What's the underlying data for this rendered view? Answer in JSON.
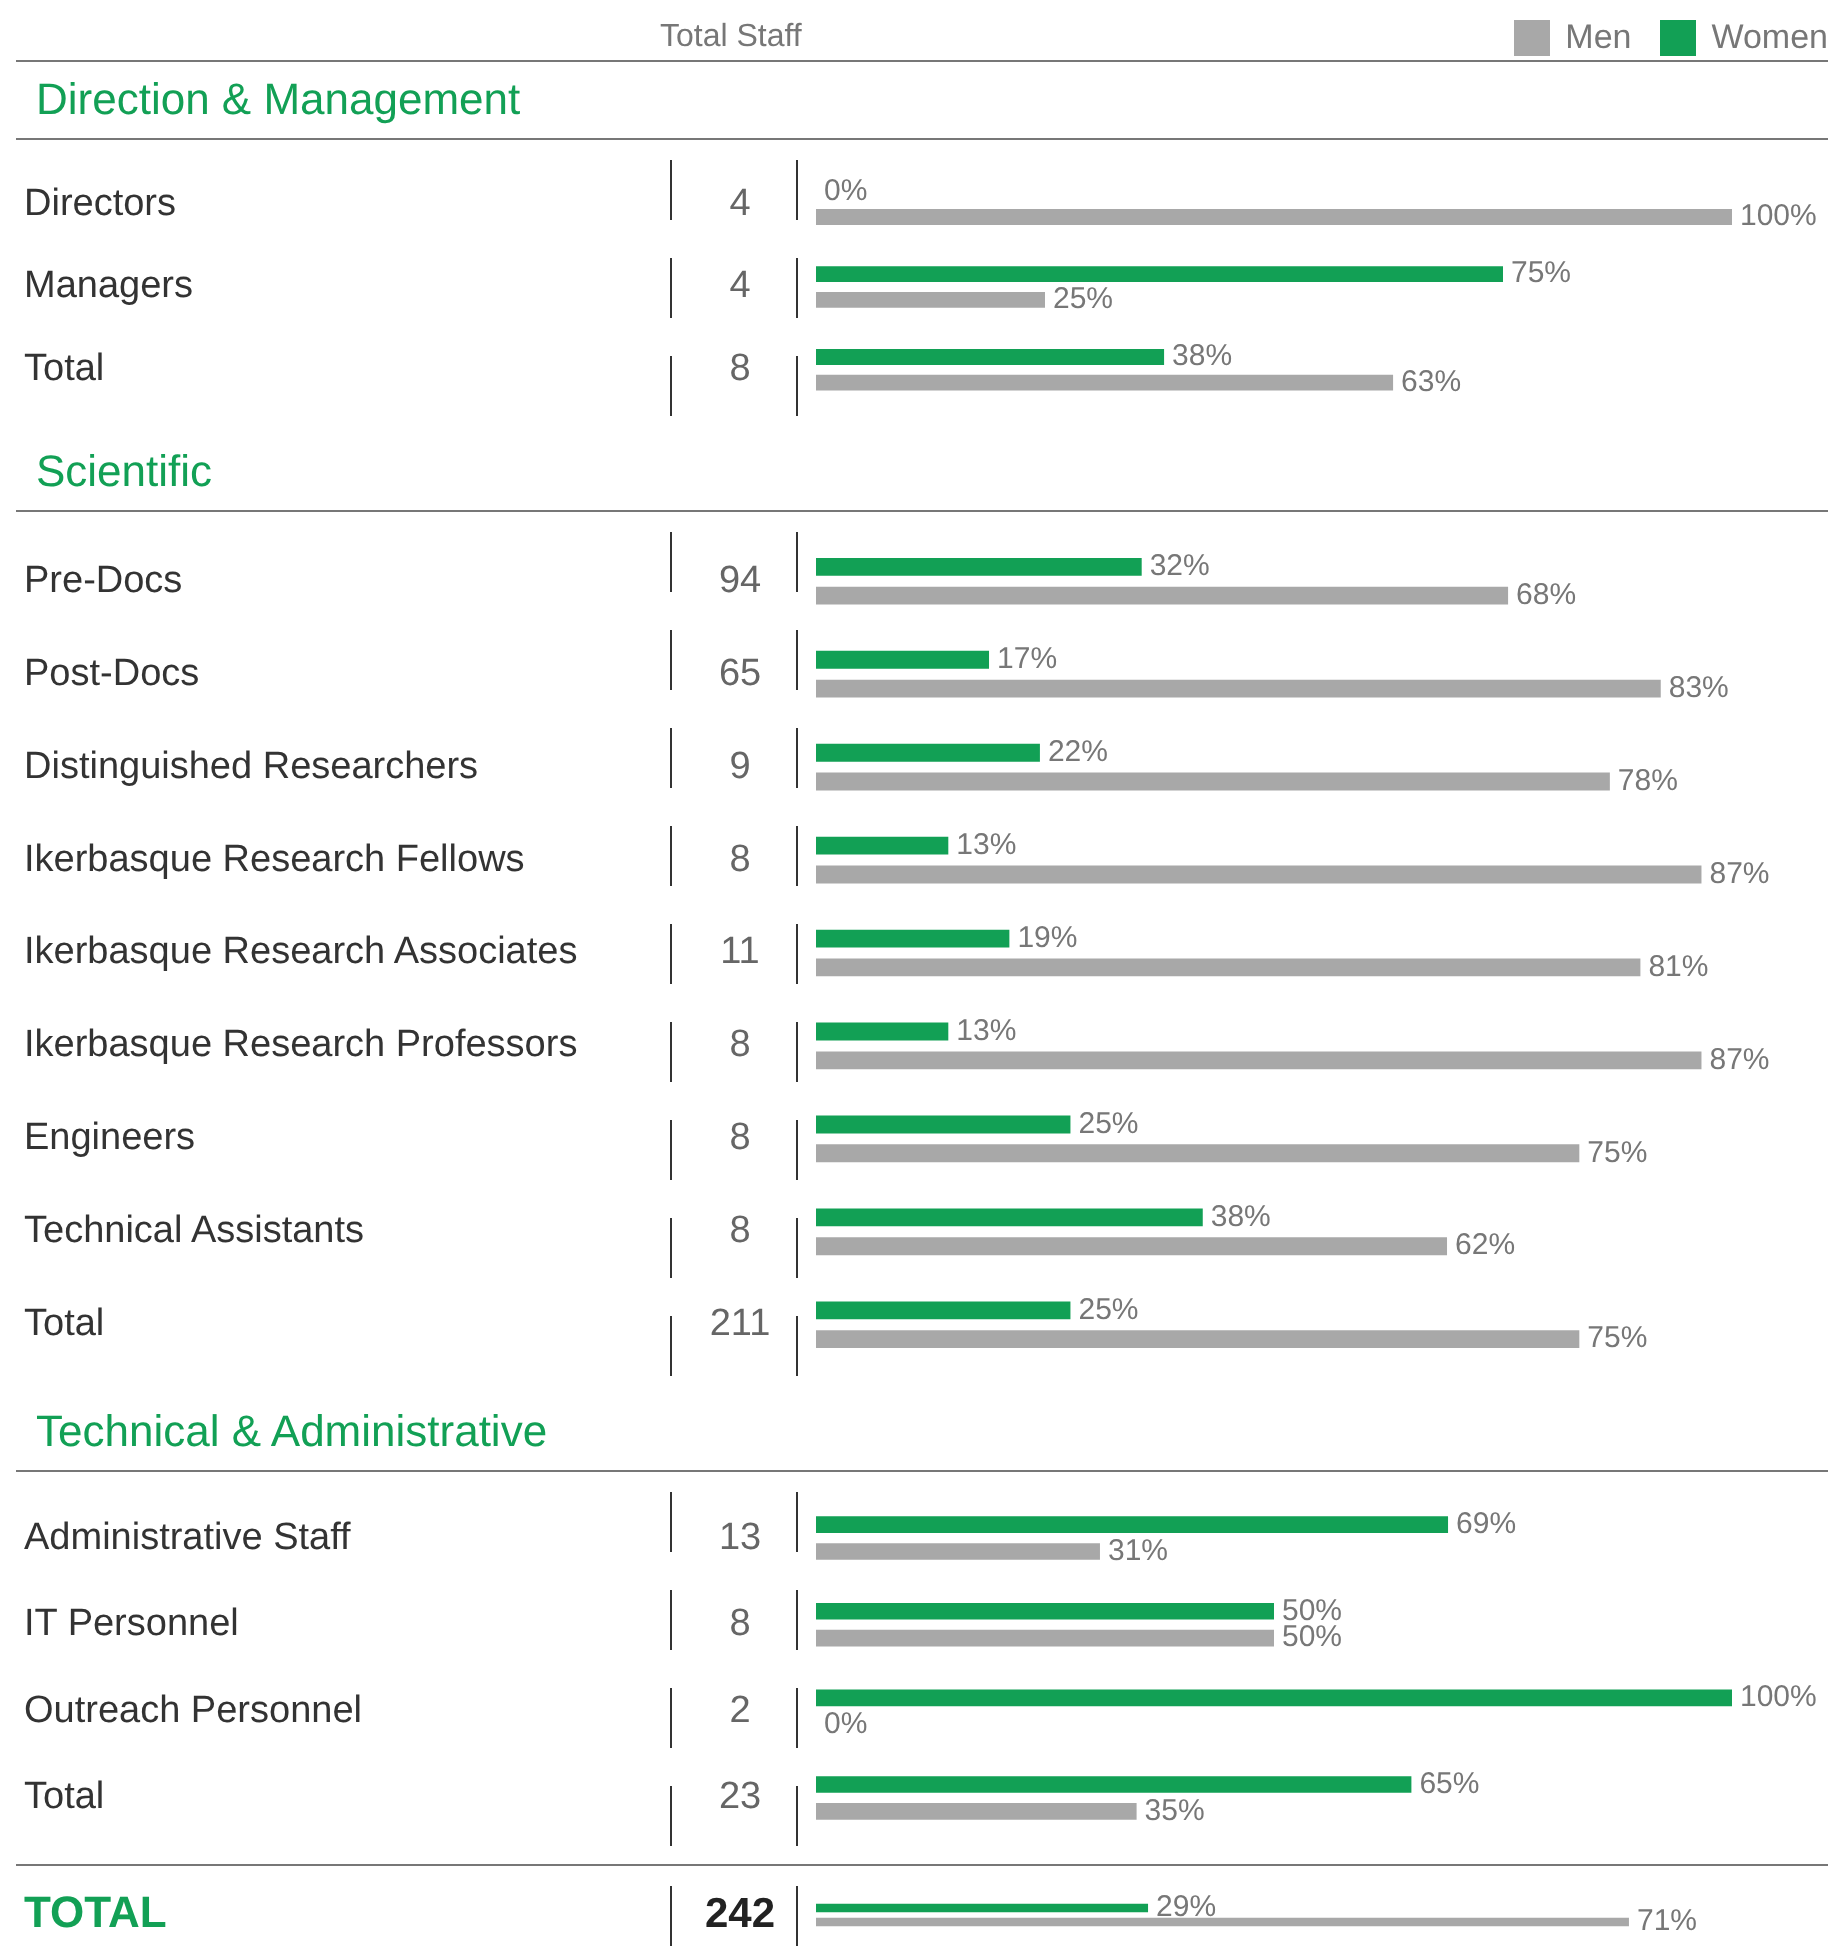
{
  "chart_data": [
    {
      "type": "bar",
      "orientation": "horizontal",
      "title": "Direction & Management",
      "subtitle": "Total Staff",
      "categories": [
        "Directors",
        "Managers",
        "Total"
      ],
      "tick_labels": "y",
      "legend": "top right",
      "series": [
        {
          "name": "Women",
          "color": "#12a055",
          "values": [
            0,
            75,
            38
          ],
          "value_labels": [
            "0%",
            "75%",
            "38%"
          ]
        },
        {
          "name": "Men",
          "color": "#a8a8a8",
          "values": [
            100,
            25,
            63
          ],
          "value_labels": [
            "100%",
            "25%",
            "63%"
          ]
        }
      ],
      "annotations": [
        "4",
        "4",
        "8"
      ]
    },
    {
      "type": "bar",
      "orientation": "horizontal",
      "title": "Scientific",
      "categories": [
        "Pre-Docs",
        "Post-Docs",
        "Distinguished Researchers",
        "Ikerbasque Research Fellows",
        "Ikerbasque Research Associates",
        "Ikerbasque Research Professors",
        "Engineers",
        "Technical Assistants",
        "Total"
      ],
      "tick_labels": "y",
      "series": [
        {
          "color": "#12a055",
          "values": [
            32,
            17,
            22,
            13,
            19,
            13,
            25,
            38,
            25
          ],
          "value_labels": [
            "32%",
            "17%",
            "22%",
            "13%",
            "19%",
            "13%",
            "25%",
            "38%",
            "25%"
          ]
        },
        {
          "color": "#a8a8a8",
          "values": [
            68,
            83,
            78,
            87,
            81,
            87,
            75,
            62,
            75
          ],
          "value_labels": [
            "68%",
            "83%",
            "78%",
            "87%",
            "81%",
            "87%",
            "75%",
            "62%",
            "75%"
          ]
        }
      ],
      "annotations": [
        "94",
        "65",
        "9",
        "8",
        "11",
        "8",
        "8",
        "8",
        "211"
      ]
    },
    {
      "type": "bar",
      "orientation": "horizontal",
      "title": "Technical & Administrative",
      "categories": [
        "Administrative Staff",
        "IT Personnel",
        "Outreach Personnel",
        "Total"
      ],
      "tick_labels": "y",
      "series": [
        {
          "color": "#12a055",
          "values": [
            69,
            50,
            100,
            65
          ],
          "value_labels": [
            "69%",
            "50%",
            "100%",
            "65%"
          ]
        },
        {
          "color": "#a8a8a8",
          "values": [
            31,
            50,
            0,
            35
          ],
          "value_labels": [
            "31%",
            "50%",
            "0%",
            "35%"
          ]
        }
      ],
      "annotations": [
        "13",
        "8",
        "2",
        "23"
      ]
    },
    {
      "type": "bar",
      "orientation": "horizontal",
      "categories": [
        "TOTAL"
      ],
      "tick_labels": "y",
      "series": [
        {
          "color": "#12a055",
          "values": [
            29
          ],
          "value_labels": [
            "29%"
          ]
        },
        {
          "color": "#a8a8a8",
          "values": [
            71
          ],
          "value_labels": [
            "71%"
          ]
        }
      ],
      "annotations": [
        "242"
      ]
    }
  ]
}
